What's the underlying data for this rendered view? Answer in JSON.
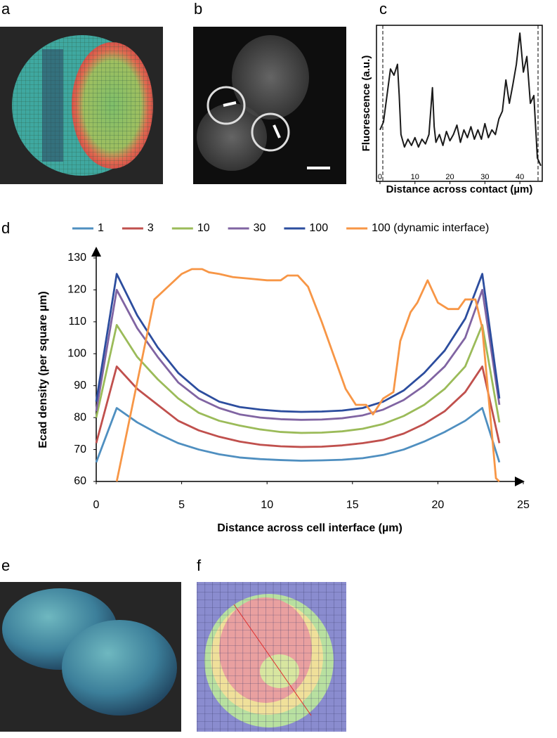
{
  "panel_labels": [
    "a",
    "b",
    "c",
    "d",
    "e",
    "f"
  ],
  "chart_data": [
    {
      "type": "line",
      "panel": "c",
      "x_label": "Distance across contact (µm)",
      "y_label": "Fluorescence (a.u.)",
      "xlim": [
        -1,
        46.4
      ],
      "ylim": [
        0,
        1
      ],
      "xticks": [
        0,
        10,
        20,
        30,
        40
      ],
      "color": "#1a1a1a",
      "x": [
        0,
        1,
        2,
        3,
        4,
        5,
        5.5,
        6,
        7,
        8,
        9,
        10,
        11,
        12,
        13,
        14,
        15,
        15.5,
        16,
        17,
        18,
        19,
        20,
        21,
        22,
        23,
        24,
        25,
        26,
        27,
        28,
        29,
        30,
        31,
        32,
        33,
        34,
        35,
        36,
        37,
        38,
        39,
        40,
        41,
        42,
        43,
        44,
        45,
        46
      ],
      "values": [
        0.33,
        0.38,
        0.55,
        0.72,
        0.68,
        0.75,
        0.55,
        0.3,
        0.22,
        0.27,
        0.23,
        0.28,
        0.22,
        0.27,
        0.24,
        0.3,
        0.6,
        0.35,
        0.25,
        0.3,
        0.23,
        0.32,
        0.26,
        0.3,
        0.36,
        0.25,
        0.33,
        0.28,
        0.35,
        0.27,
        0.33,
        0.27,
        0.37,
        0.28,
        0.33,
        0.3,
        0.4,
        0.45,
        0.65,
        0.5,
        0.62,
        0.75,
        0.95,
        0.7,
        0.8,
        0.5,
        0.55,
        0.15,
        0.1
      ]
    },
    {
      "type": "line",
      "panel": "d",
      "x_label": "Distance across cell interface (µm)",
      "y_label": "Ecad density (per square µm)",
      "xlim": [
        0,
        25
      ],
      "ylim": [
        60,
        130
      ],
      "xticks": [
        0,
        5,
        10,
        15,
        20,
        25
      ],
      "yticks": [
        60,
        70,
        80,
        90,
        100,
        110,
        120,
        130
      ],
      "x": [
        0,
        1.2,
        2.4,
        3.6,
        4.8,
        6,
        7.2,
        8.4,
        9.6,
        10.8,
        12,
        13.2,
        14.4,
        15.6,
        16.8,
        18,
        19.2,
        20.4,
        21.6,
        22.6,
        23.6
      ],
      "series": [
        {
          "name": "1",
          "color": "#4f8fc0",
          "values": [
            66,
            83,
            78.5,
            75,
            72,
            70,
            68.5,
            67.5,
            67,
            66.7,
            66.5,
            66.6,
            66.8,
            67.3,
            68.3,
            70,
            72.5,
            75.5,
            79,
            83,
            66
          ]
        },
        {
          "name": "3",
          "color": "#c0504d",
          "values": [
            72,
            96,
            89,
            84,
            79,
            76,
            74,
            72.5,
            71.5,
            71,
            70.8,
            70.9,
            71.3,
            72,
            73,
            75,
            78,
            82,
            88,
            96,
            72
          ]
        },
        {
          "name": "10",
          "color": "#9bbb59",
          "values": [
            80,
            109,
            99,
            92,
            86,
            81.5,
            79,
            77.5,
            76.3,
            75.5,
            75.2,
            75.3,
            75.7,
            76.5,
            78,
            80.5,
            84,
            89,
            96,
            109,
            78.5
          ]
        },
        {
          "name": "30",
          "color": "#8064a2",
          "values": [
            82,
            120,
            108,
            99,
            91,
            86,
            83,
            81,
            80,
            79.5,
            79.3,
            79.4,
            79.8,
            80.7,
            82.5,
            85.5,
            90,
            96,
            105,
            120,
            84
          ]
        },
        {
          "name": "100",
          "color": "#2c4d9e",
          "values": [
            85,
            125,
            112,
            102,
            94,
            88.5,
            85,
            83.3,
            82.5,
            82,
            81.8,
            81.9,
            82.2,
            83,
            85,
            88.5,
            94,
            101,
            111,
            125,
            86
          ]
        },
        {
          "name": "100 (dynamic interface)",
          "color": "#f79646",
          "x": [
            1.2,
            3.4,
            4.2,
            5,
            5.6,
            6.2,
            6.6,
            7.2,
            8,
            9,
            10,
            10.8,
            11.2,
            11.8,
            12.4,
            13.2,
            14,
            14.6,
            15.2,
            15.8,
            16.2,
            16.8,
            17.4,
            17.8,
            18.4,
            18.8,
            19.4,
            20,
            20.6,
            21.2,
            21.6,
            22.2,
            22.6,
            23.4,
            23.6
          ],
          "values": [
            60,
            117,
            121,
            125,
            126.5,
            126.5,
            125.5,
            125,
            124,
            123.5,
            123,
            123,
            124.5,
            124.5,
            121,
            110,
            98,
            89,
            84,
            84,
            81,
            86,
            88,
            104,
            113,
            116,
            123,
            116,
            114,
            114,
            117,
            117,
            108,
            61,
            60
          ]
        }
      ]
    }
  ]
}
